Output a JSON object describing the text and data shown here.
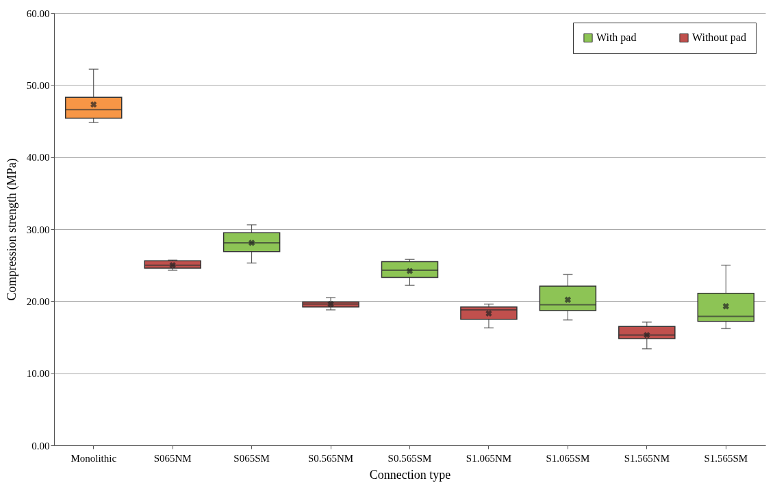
{
  "chart_data": {
    "type": "box",
    "xlabel": "Connection type",
    "ylabel": "Compression strength (MPa)",
    "categories": [
      "Monolithic",
      "S065NM",
      "S065SM",
      "S0.565NM",
      "S0.565SM",
      "S1.065NM",
      "S1.065SM",
      "S1.565NM",
      "S1.565SM"
    ],
    "series": [
      {
        "color": "#f79646",
        "boxes": [
          {
            "low": 44.8,
            "q1": 45.4,
            "median": 46.6,
            "q3": 48.3,
            "high": 52.2,
            "mean": 47.3
          },
          null,
          null,
          null,
          null,
          null,
          null,
          null,
          null
        ]
      },
      {
        "name": "With pad",
        "color": "#8dc455",
        "boxes": [
          null,
          null,
          {
            "low": 25.3,
            "q1": 26.9,
            "median": 28.1,
            "q3": 29.5,
            "high": 30.6,
            "mean": 28.1
          },
          null,
          {
            "low": 22.2,
            "q1": 23.3,
            "median": 24.3,
            "q3": 25.5,
            "high": 25.8,
            "mean": 24.2
          },
          null,
          {
            "low": 17.4,
            "q1": 18.7,
            "median": 19.5,
            "q3": 22.1,
            "high": 23.7,
            "mean": 20.2
          },
          null,
          {
            "low": 16.2,
            "q1": 17.2,
            "median": 17.9,
            "q3": 21.1,
            "high": 25.0,
            "mean": 19.3
          }
        ]
      },
      {
        "name": "Without pad",
        "color": "#c0504d",
        "boxes": [
          null,
          {
            "low": 24.3,
            "q1": 24.6,
            "median": 25.0,
            "q3": 25.6,
            "high": 25.7,
            "mean": 25.0
          },
          null,
          {
            "low": 18.8,
            "q1": 19.2,
            "median": 19.6,
            "q3": 19.9,
            "high": 20.5,
            "mean": 19.6
          },
          null,
          {
            "low": 16.3,
            "q1": 17.5,
            "median": 18.8,
            "q3": 19.2,
            "high": 19.6,
            "mean": 18.3
          },
          null,
          {
            "low": 13.4,
            "q1": 14.8,
            "median": 15.3,
            "q3": 16.5,
            "high": 17.1,
            "mean": 15.3
          },
          null
        ]
      }
    ],
    "ylim": [
      0,
      60
    ],
    "yticks": [
      {
        "value": 0,
        "label": "0.00"
      },
      {
        "value": 10,
        "label": "10.00"
      },
      {
        "value": 20,
        "label": "20.00"
      },
      {
        "value": 30,
        "label": "30.00"
      },
      {
        "value": 40,
        "label": "40.00"
      },
      {
        "value": 50,
        "label": "50.00"
      },
      {
        "value": 60,
        "label": "60.00"
      }
    ],
    "grid": "y",
    "legend": "top right"
  }
}
